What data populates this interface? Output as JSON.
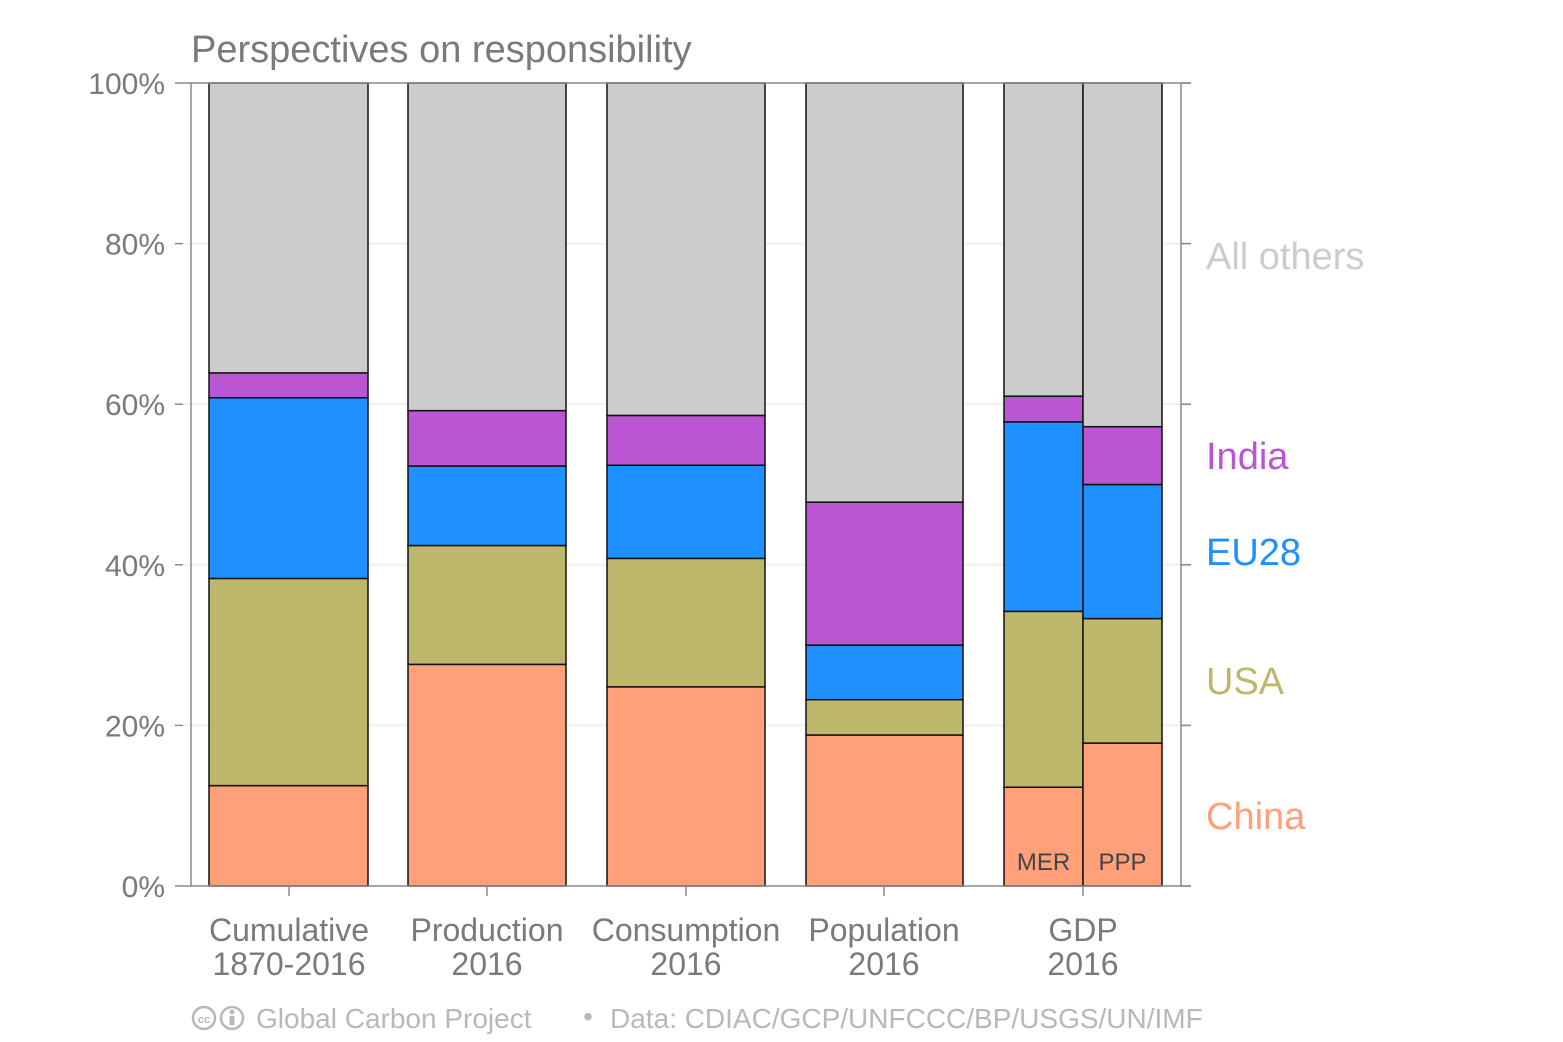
{
  "chart_data": {
    "type": "bar",
    "stacked": true,
    "title": "Perspectives on responsibility",
    "xlabel": "",
    "ylabel": "",
    "ylim": [
      0,
      100
    ],
    "y_ticks": [
      "0%",
      "20%",
      "40%",
      "60%",
      "80%",
      "100%"
    ],
    "grid": true,
    "legend_placement": "right",
    "groups": [
      {
        "label_line1": "Cumulative",
        "label_line2": "1870-2016",
        "bars": [
          ""
        ]
      },
      {
        "label_line1": "Production",
        "label_line2": "2016",
        "bars": [
          ""
        ]
      },
      {
        "label_line1": "Consumption",
        "label_line2": "2016",
        "bars": [
          ""
        ]
      },
      {
        "label_line1": "Population",
        "label_line2": "2016",
        "bars": [
          ""
        ]
      },
      {
        "label_line1": "GDP",
        "label_line2": "2016",
        "bars": [
          "MER",
          "PPP"
        ]
      }
    ],
    "categories": [
      "Cumulative 1870-2016",
      "Production 2016",
      "Consumption 2016",
      "Population 2016",
      "GDP 2016 MER",
      "GDP 2016 PPP"
    ],
    "series": [
      {
        "name": "China",
        "color": "#FFA07A",
        "values": [
          12.5,
          27.6,
          24.8,
          18.8,
          12.3,
          17.8
        ]
      },
      {
        "name": "USA",
        "color": "#BDB76B",
        "values": [
          25.8,
          14.8,
          16.0,
          4.4,
          21.9,
          15.5
        ]
      },
      {
        "name": "EU28",
        "color": "#1E90FF",
        "values": [
          22.5,
          9.9,
          11.6,
          6.8,
          23.6,
          16.7
        ]
      },
      {
        "name": "India",
        "color": "#BA55D3",
        "values": [
          3.1,
          6.9,
          6.2,
          17.8,
          3.2,
          7.2
        ]
      },
      {
        "name": "All others",
        "color": "#CCCCCC",
        "values": [
          36.1,
          40.8,
          41.4,
          52.2,
          39.0,
          42.8
        ]
      }
    ]
  },
  "footer": {
    "cc_icon": "creative-commons-icon",
    "org": "Global Carbon Project",
    "separator": "•",
    "source": "Data: CDIAC/GCP/UNFCCC/BP/USGS/UN/IMF"
  }
}
